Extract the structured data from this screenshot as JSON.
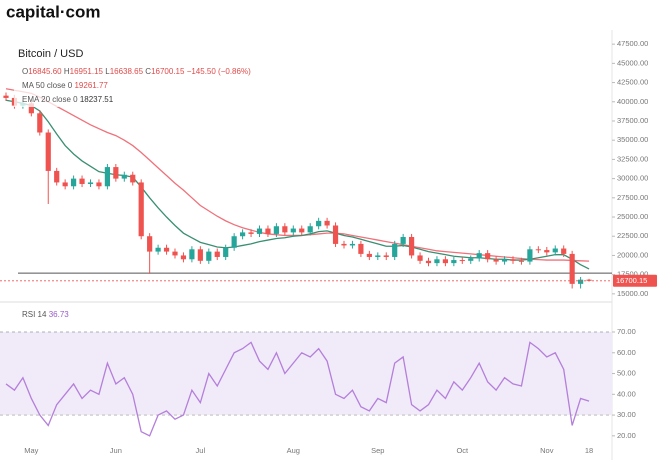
{
  "header": {
    "logo": "capital·com",
    "ohlc": [
      {
        "label": "O",
        "value": "16845.60"
      },
      {
        "label": "H",
        "value": "16951.15"
      },
      {
        "label": "L",
        "value": "16638.65"
      },
      {
        "label": "C",
        "value": "16700.15"
      }
    ],
    "change": "−145.50 (−0.86%)"
  },
  "chart_data": [
    {
      "type": "candlestick",
      "title": "Bitcoin / USD",
      "up_color": "#26a69a",
      "down_color": "#ef5350",
      "open": [
        40800,
        40500,
        39500,
        39800,
        38500,
        36000,
        31000,
        29500,
        29000,
        30000,
        29300,
        29500,
        29000,
        31500,
        30000,
        30500,
        29500,
        22500,
        20500,
        21000,
        20500,
        20000,
        19500,
        20800,
        19300,
        20500,
        19800,
        21000,
        22500,
        23000,
        22800,
        23500,
        22800,
        23800,
        23000,
        23500,
        23000,
        23800,
        24500,
        23900,
        21500,
        21300,
        21500,
        20200,
        19800,
        20000,
        19800,
        21500,
        22400,
        20000,
        19300,
        19000,
        19500,
        19000,
        19400,
        19300,
        19600,
        20300,
        19500,
        19200,
        19500,
        19300,
        19200,
        20800,
        20700,
        20400,
        20900,
        20200,
        16300,
        16845.6
      ],
      "high": [
        41200,
        40900,
        40200,
        40200,
        38900,
        36400,
        31400,
        29900,
        30400,
        30400,
        29900,
        29900,
        31900,
        31900,
        30900,
        30900,
        29900,
        22900,
        21400,
        21400,
        20900,
        20400,
        21200,
        21200,
        20900,
        20900,
        21400,
        22900,
        23400,
        23400,
        23900,
        23900,
        24200,
        24200,
        23900,
        23900,
        24200,
        24900,
        24900,
        24300,
        21900,
        21900,
        21900,
        20600,
        20400,
        20400,
        21900,
        22800,
        22800,
        20400,
        19700,
        19900,
        19900,
        19800,
        19800,
        20000,
        20700,
        20700,
        19900,
        19900,
        19900,
        19700,
        21200,
        21200,
        21100,
        21300,
        21300,
        20600,
        17200,
        16951.15
      ],
      "low": [
        40100,
        39100,
        39100,
        38100,
        35600,
        26700,
        29100,
        28600,
        28600,
        28900,
        28900,
        28600,
        28600,
        29600,
        29600,
        29100,
        22100,
        17600,
        20100,
        20100,
        19600,
        19100,
        19100,
        18900,
        18900,
        19400,
        19400,
        20600,
        22100,
        22400,
        22400,
        22400,
        22400,
        22600,
        22600,
        22600,
        22600,
        23400,
        23500,
        21100,
        20900,
        20900,
        19800,
        19400,
        19400,
        19400,
        19400,
        21100,
        19600,
        18900,
        18600,
        18600,
        18600,
        18600,
        18900,
        18900,
        19200,
        19100,
        18800,
        18800,
        18900,
        18800,
        18800,
        20300,
        20000,
        20000,
        19800,
        15700,
        15700,
        16638.65
      ],
      "close": [
        40500,
        39500,
        39800,
        38500,
        36000,
        31000,
        29500,
        29000,
        30000,
        29300,
        29500,
        29000,
        31500,
        30000,
        30500,
        29500,
        22500,
        20500,
        21000,
        20500,
        20000,
        19500,
        20800,
        19300,
        20500,
        19800,
        21000,
        22500,
        23000,
        22800,
        23500,
        22800,
        23800,
        23000,
        23500,
        23000,
        23800,
        24500,
        23900,
        21500,
        21300,
        21500,
        20200,
        19800,
        20000,
        19800,
        21500,
        22400,
        20000,
        19300,
        19000,
        19500,
        19000,
        19400,
        19300,
        19600,
        20300,
        19500,
        19200,
        19500,
        19300,
        19200,
        20800,
        20700,
        20400,
        20900,
        20200,
        16300,
        16845.6,
        16700.15
      ],
      "series": [
        {
          "name": "MA 50 close 0",
          "color": "#f0717a",
          "values": [
            41700,
            41500,
            41300,
            41100,
            40600,
            40000,
            39400,
            38800,
            38200,
            37600,
            37000,
            36500,
            36000,
            35600,
            35000,
            34300,
            33400,
            32400,
            31400,
            30400,
            29400,
            28500,
            27500,
            26500,
            25800,
            25100,
            24500,
            24000,
            23600,
            23300,
            23000,
            22800,
            22700,
            22600,
            22600,
            22600,
            22700,
            22800,
            22900,
            22900,
            22800,
            22600,
            22400,
            22200,
            22000,
            21800,
            21600,
            21400,
            21200,
            21000,
            20800,
            20600,
            20500,
            20400,
            20300,
            20200,
            20100,
            20000,
            19900,
            19800,
            19700,
            19600,
            19500,
            19450,
            19400,
            19400,
            19400,
            19350,
            19300,
            19261.77
          ]
        },
        {
          "name": "EMA 20 close 0",
          "color": "#3a8f72",
          "values": [
            40200,
            40000,
            39800,
            39500,
            38800,
            37400,
            35800,
            34300,
            33200,
            32300,
            31600,
            30900,
            30700,
            30500,
            30400,
            30200,
            28900,
            27500,
            26200,
            25000,
            23900,
            22900,
            22300,
            21700,
            21400,
            21100,
            21000,
            21100,
            21300,
            21500,
            21800,
            22000,
            22200,
            22300,
            22500,
            22600,
            22800,
            23100,
            23200,
            22900,
            22600,
            22400,
            22100,
            21800,
            21500,
            21200,
            21200,
            21300,
            21100,
            20800,
            20500,
            20300,
            20100,
            19900,
            19800,
            19700,
            19700,
            19600,
            19500,
            19500,
            19400,
            19400,
            19500,
            19700,
            19900,
            20100,
            20100,
            19500,
            18800,
            18237.51
          ]
        }
      ],
      "hline": 17700,
      "ylim": [
        14200,
        48300
      ],
      "yticks": [
        {
          "value": 15000,
          "label": "15000.00"
        },
        {
          "value": 17500,
          "label": "17500.00"
        },
        {
          "value": 20000,
          "label": "20000.00"
        },
        {
          "value": 22500,
          "label": "22500.00"
        },
        {
          "value": 25000,
          "label": "25000.00"
        },
        {
          "value": 27500,
          "label": "27500.00"
        },
        {
          "value": 30000,
          "label": "30000.00"
        },
        {
          "value": 32500,
          "label": "32500.00"
        },
        {
          "value": 35000,
          "label": "35000.00"
        },
        {
          "value": 37500,
          "label": "37500.00"
        },
        {
          "value": 40000,
          "label": "40000.00"
        },
        {
          "value": 42500,
          "label": "42500.00"
        },
        {
          "value": 45000,
          "label": "45000.00"
        },
        {
          "value": 47500,
          "label": "47500.00"
        }
      ]
    },
    {
      "type": "line",
      "categories": [
        null,
        null,
        null,
        "May",
        null,
        null,
        null,
        null,
        null,
        null,
        null,
        null,
        null,
        "Jun",
        null,
        null,
        null,
        null,
        null,
        null,
        null,
        null,
        null,
        "Jul",
        null,
        null,
        null,
        null,
        null,
        null,
        null,
        null,
        null,
        null,
        "Aug",
        null,
        null,
        null,
        null,
        null,
        null,
        null,
        null,
        null,
        "Sep",
        null,
        null,
        null,
        null,
        null,
        null,
        null,
        null,
        null,
        "Oct",
        null,
        null,
        null,
        null,
        null,
        null,
        null,
        null,
        null,
        "Nov",
        null,
        null,
        null,
        null,
        "18"
      ],
      "series": [
        {
          "name": "RSI 14",
          "color": "#b47fdb",
          "values": [
            45,
            42,
            48,
            38,
            30,
            25,
            35,
            40,
            45,
            38,
            42,
            40,
            55,
            45,
            48,
            40,
            22,
            20,
            30,
            32,
            28,
            30,
            42,
            36,
            50,
            44,
            52,
            60,
            62,
            65,
            56,
            52,
            60,
            50,
            55,
            60,
            58,
            62,
            56,
            40,
            38,
            42,
            34,
            32,
            38,
            36,
            55,
            58,
            35,
            32,
            35,
            42,
            38,
            46,
            42,
            48,
            55,
            46,
            42,
            48,
            45,
            44,
            65,
            62,
            58,
            60,
            52,
            25,
            38,
            36.73
          ]
        }
      ],
      "band": [
        30,
        70
      ],
      "band_color": "#f1eaf8",
      "ylim": [
        18,
        83
      ],
      "yticks": [
        {
          "value": 20,
          "label": "20.00"
        },
        {
          "value": 30,
          "label": "30.00"
        },
        {
          "value": 40,
          "label": "40.00"
        },
        {
          "value": 50,
          "label": "50.00"
        },
        {
          "value": 60,
          "label": "60.00"
        },
        {
          "value": 70,
          "label": "70.00"
        }
      ]
    }
  ]
}
